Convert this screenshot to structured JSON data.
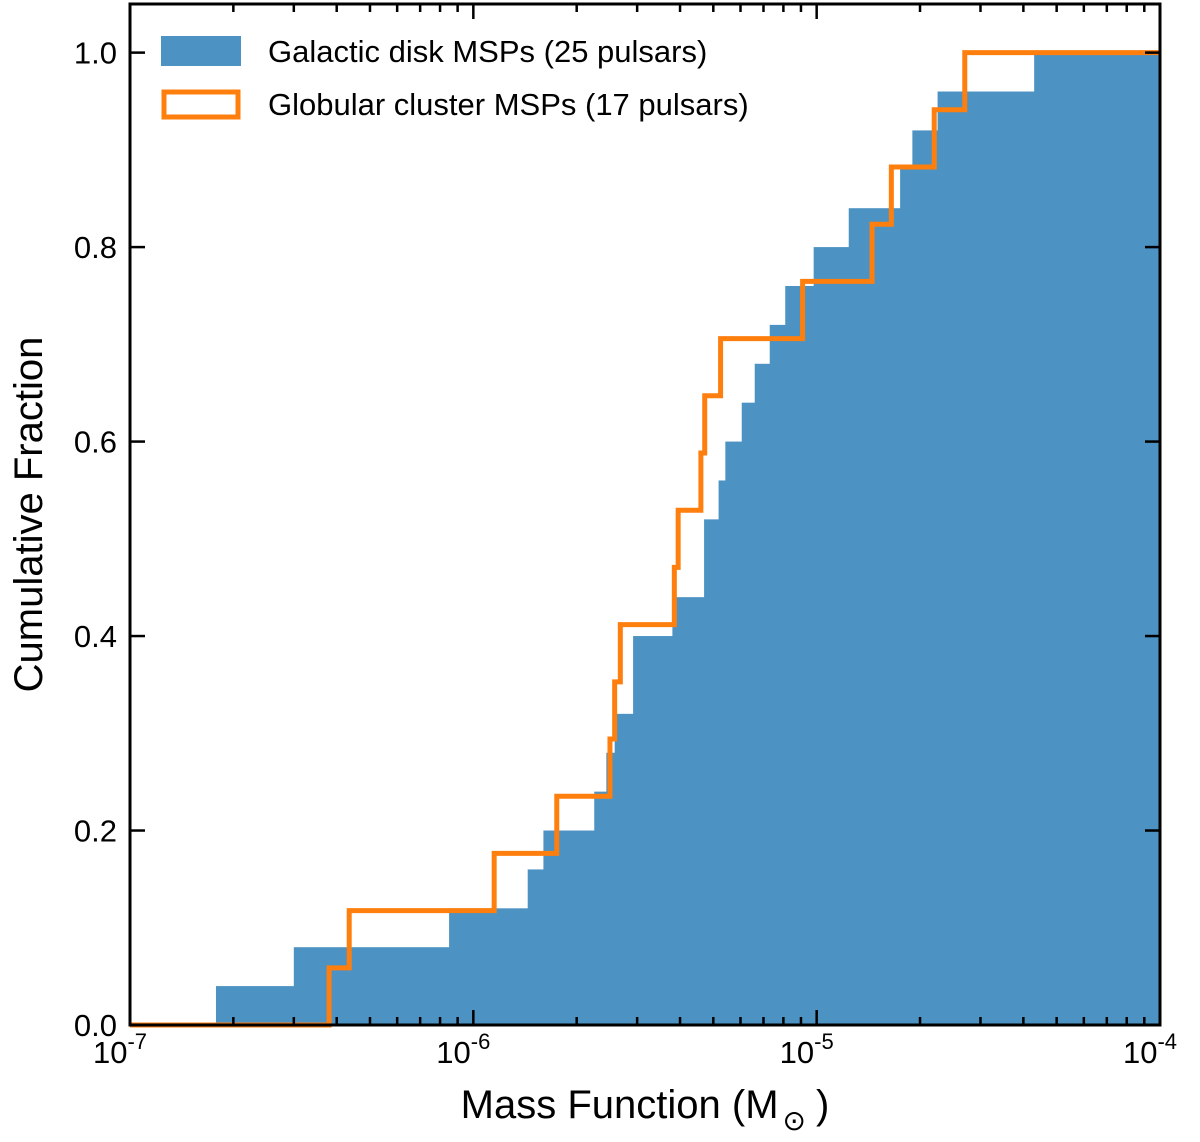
{
  "chart_data": {
    "type": "step",
    "title": "",
    "xlabel": "Mass Function (M",
    "xlabel_symbol": "⊙",
    "xlabel_close": ")",
    "ylabel": "Cumulative Fraction",
    "xscale": "log",
    "xlim": [
      1e-07,
      0.0001
    ],
    "ylim": [
      0.0,
      1.05
    ],
    "xticks": [
      {
        "value": 1e-07,
        "base": "10",
        "exp": "-7"
      },
      {
        "value": 1e-06,
        "base": "10",
        "exp": "-6"
      },
      {
        "value": 1e-05,
        "base": "10",
        "exp": "-5"
      },
      {
        "value": 0.0001,
        "base": "10",
        "exp": "-4"
      }
    ],
    "yticks": [
      {
        "value": 0.0,
        "label": "0.0"
      },
      {
        "value": 0.2,
        "label": "0.2"
      },
      {
        "value": 0.4,
        "label": "0.4"
      },
      {
        "value": 0.6,
        "label": "0.6"
      },
      {
        "value": 0.8,
        "label": "0.8"
      },
      {
        "value": 1.0,
        "label": "1.0"
      }
    ],
    "grid": false,
    "legend_position": "top-left",
    "series": [
      {
        "name": "Galactic disk MSPs (25 pulsars)",
        "style": "filled",
        "color": "#4c92c3",
        "edges": [
          1e-07,
          1.78e-07,
          3e-07,
          8.5e-07,
          1.44e-06,
          1.6e-06,
          2.25e-06,
          2.44e-06,
          2.58e-06,
          2.92e-06,
          3.8e-06,
          4.7e-06,
          5.18e-06,
          5.42e-06,
          6.05e-06,
          6.6e-06,
          7.3e-06,
          8.1e-06,
          9.8e-06,
          1.24e-05,
          1.75e-05,
          1.9e-05,
          2.25e-05,
          4.3e-05,
          0.0001
        ],
        "values": [
          0.0,
          0.04,
          0.08,
          0.12,
          0.16,
          0.2,
          0.24,
          0.28,
          0.32,
          0.4,
          0.44,
          0.52,
          0.56,
          0.6,
          0.64,
          0.68,
          0.72,
          0.76,
          0.8,
          0.84,
          0.88,
          0.92,
          0.96,
          1.0
        ]
      },
      {
        "name": "Globular cluster MSPs (17 pulsars)",
        "style": "step",
        "color": "#ff7f0e",
        "edges": [
          1e-07,
          3.8e-07,
          4.35e-07,
          1.15e-06,
          1.75e-06,
          2.5e-06,
          2.58e-06,
          2.68e-06,
          2.9e-06,
          3.85e-06,
          3.95e-06,
          4.6e-06,
          4.72e-06,
          5.25e-06,
          9.1e-06,
          1.45e-05,
          1.65e-05,
          2.2e-05,
          2.7e-05,
          0.0001
        ],
        "values": [
          0.0,
          0.0588,
          0.1176,
          0.1765,
          0.2353,
          0.2941,
          0.3529,
          0.4118,
          0.4118,
          0.4706,
          0.5294,
          0.5882,
          0.6471,
          0.7059,
          0.7647,
          0.8235,
          0.8824,
          0.9412,
          1.0
        ]
      }
    ]
  }
}
